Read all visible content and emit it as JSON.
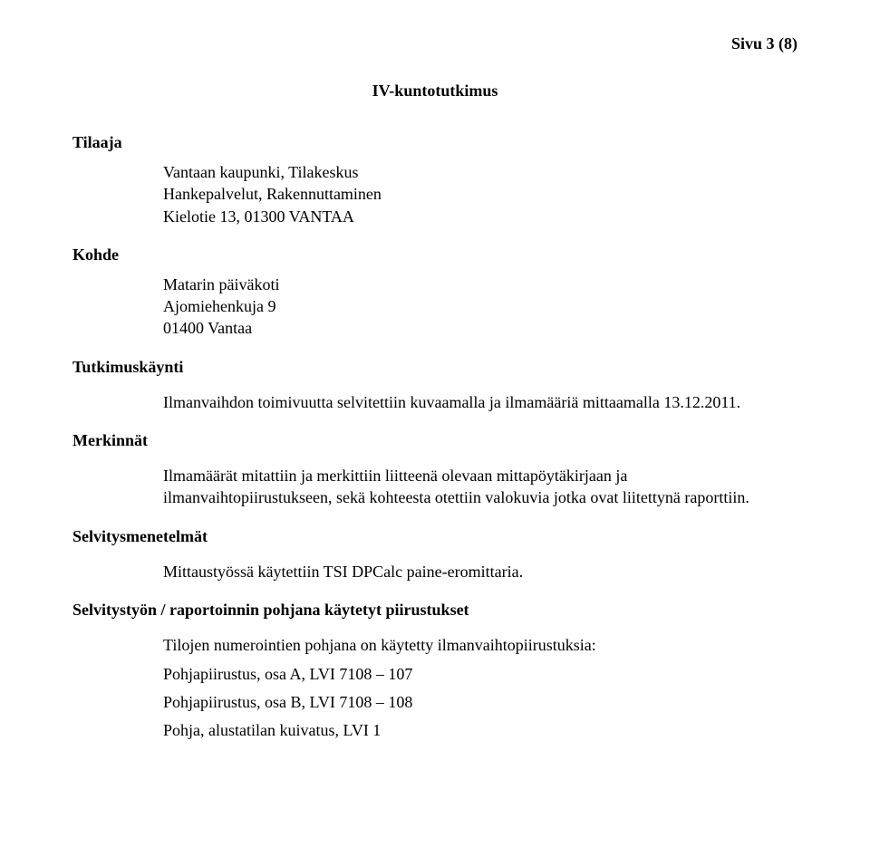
{
  "page_number": "Sivu 3 (8)",
  "title": "IV-kuntotutkimus",
  "sections": {
    "tilaaja": {
      "heading": "Tilaaja",
      "lines": [
        "Vantaan kaupunki, Tilakeskus",
        "Hankepalvelut, Rakennuttaminen",
        "Kielotie 13, 01300 VANTAA"
      ]
    },
    "kohde": {
      "heading": "Kohde",
      "lines": [
        "Matarin päiväkoti",
        "Ajomiehenkuja 9",
        "01400 Vantaa"
      ]
    },
    "tutkimuskaynti": {
      "heading": "Tutkimuskäynti",
      "text": "Ilmanvaihdon toimivuutta selvitettiin kuvaamalla ja ilmamääriä mittaamalla 13.12.2011."
    },
    "merkinnat": {
      "heading": "Merkinnät",
      "text": "Ilmamäärät mitattiin ja merkittiin liitteenä olevaan mittapöytäkirjaan ja ilmanvaihtopiirustukseen, sekä kohteesta otettiin valokuvia jotka ovat liitettynä raporttiin."
    },
    "selvitysmenetelmat": {
      "heading": "Selvitysmenetelmät",
      "text": "Mittaustyössä käytettiin TSI DPCalc paine-eromittaria."
    },
    "selvitystyo": {
      "heading": "Selvitystyön / raportoinnin pohjana käytetyt piirustukset",
      "intro": "Tilojen numerointien pohjana on käytetty ilmanvaihtopiirustuksia:",
      "items": [
        "Pohjapiirustus, osa A, LVI 7108 – 107",
        "Pohjapiirustus, osa B, LVI 7108 – 108",
        "Pohja, alustatilan kuivatus, LVI 1"
      ]
    }
  }
}
